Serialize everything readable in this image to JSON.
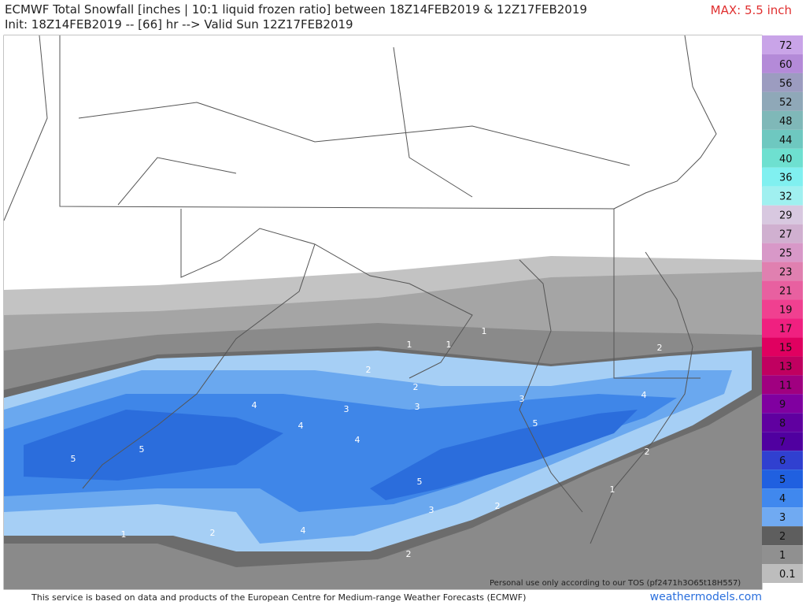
{
  "header": {
    "title": "ECMWF Total Snowfall [inches | 10:1 liquid frozen ratio] between 18Z14FEB2019 & 12Z17FEB2019",
    "subtitle": "Init: 18Z14FEB2019 -- [66] hr --> Valid Sun 12Z17FEB2019",
    "max": "MAX: 5.5 inch"
  },
  "colorbar": {
    "labels": [
      "72",
      "60",
      "56",
      "52",
      "48",
      "44",
      "40",
      "36",
      "32",
      "29",
      "27",
      "25",
      "23",
      "21",
      "19",
      "17",
      "15",
      "13",
      "11",
      "9",
      "8",
      "7",
      "6",
      "5",
      "4",
      "3",
      "2",
      "1",
      "0.1"
    ]
  },
  "map": {
    "contour_labels": [
      "1",
      "1",
      "1",
      "1",
      "1",
      "2",
      "2",
      "2",
      "2",
      "2",
      "2",
      "2",
      "3",
      "3",
      "3",
      "3",
      "4",
      "4",
      "4",
      "4",
      "4",
      "5",
      "5",
      "5",
      "5"
    ],
    "tos": "Personal use only according to our TOS (pf2471h3O65t18H557)"
  },
  "footer": {
    "source": "This service is based on data and products of the European Centre for Medium-range Weather Forecasts (ECMWF)",
    "site": "weathermodels.com"
  }
}
